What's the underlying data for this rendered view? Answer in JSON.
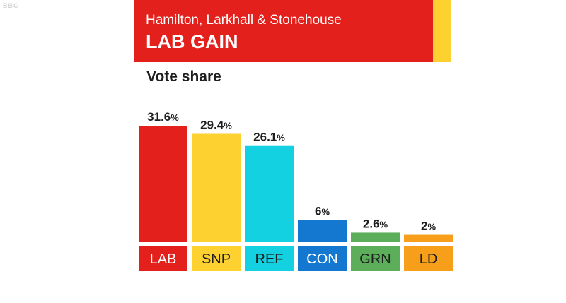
{
  "header": {
    "constituency": "Hamilton, Larkhall & Stonehouse",
    "result": "LAB GAIN",
    "band_color": "#e3201b",
    "stripe_color": "#fdd130"
  },
  "corner_logo": "BBC",
  "chart_data": {
    "type": "bar",
    "title": "Vote share",
    "categories": [
      "LAB",
      "SNP",
      "REF",
      "CON",
      "GRN",
      "LD"
    ],
    "values": [
      31.6,
      29.4,
      26.1,
      6,
      2.6,
      2
    ],
    "value_labels": [
      "31.6",
      "29.4",
      "26.1",
      "6",
      "2.6",
      "2"
    ],
    "unit": "%",
    "colors": [
      "#e3201b",
      "#fdd130",
      "#14d1e1",
      "#1478d1",
      "#5dae5a",
      "#f79f1a"
    ],
    "label_text_colors": [
      "#ffffff",
      "#1e1e1e",
      "#1e1e1e",
      "#ffffff",
      "#1e1e1e",
      "#1e1e1e"
    ],
    "ylim": [
      0,
      31.6
    ],
    "grid": false,
    "legend": "none"
  }
}
